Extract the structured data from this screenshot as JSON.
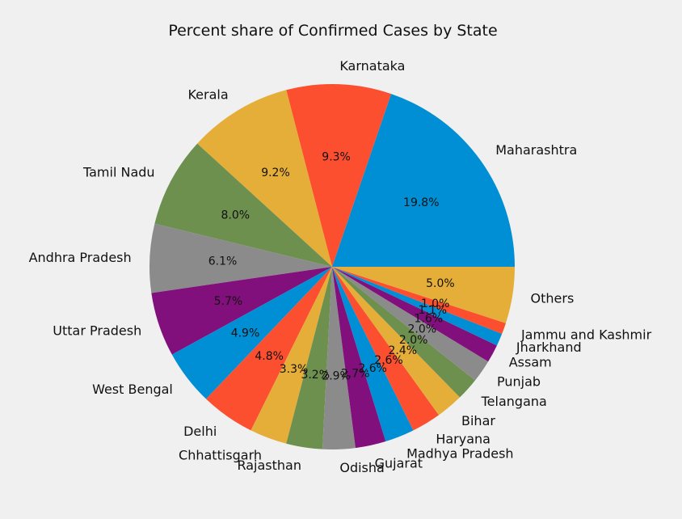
{
  "chart_data": {
    "type": "pie",
    "title": "Percent share of Confirmed Cases by State",
    "start_angle_deg": 0,
    "direction": "counterclockwise",
    "slices": [
      {
        "label": "Maharashtra",
        "value": 19.8,
        "pct_text": "19.8%",
        "color": "#008fd5"
      },
      {
        "label": "Karnataka",
        "value": 9.3,
        "pct_text": "9.3%",
        "color": "#fc4f30"
      },
      {
        "label": "Kerala",
        "value": 9.2,
        "pct_text": "9.2%",
        "color": "#e5ae38"
      },
      {
        "label": "Tamil Nadu",
        "value": 8.0,
        "pct_text": "8.0%",
        "color": "#6d904f"
      },
      {
        "label": "Andhra Pradesh",
        "value": 6.1,
        "pct_text": "6.1%",
        "color": "#8b8b8b"
      },
      {
        "label": "Uttar Pradesh",
        "value": 5.7,
        "pct_text": "5.7%",
        "color": "#810f7c"
      },
      {
        "label": "West Bengal",
        "value": 4.9,
        "pct_text": "4.9%",
        "color": "#008fd5"
      },
      {
        "label": "Delhi",
        "value": 4.8,
        "pct_text": "4.8%",
        "color": "#fc4f30"
      },
      {
        "label": "Chhattisgarh",
        "value": 3.3,
        "pct_text": "3.3%",
        "color": "#e5ae38"
      },
      {
        "label": "Rajasthan",
        "value": 3.2,
        "pct_text": "3.2%",
        "color": "#6d904f"
      },
      {
        "label": "Odisha",
        "value": 2.9,
        "pct_text": "2.9%",
        "color": "#8b8b8b"
      },
      {
        "label": "Gujarat",
        "value": 2.7,
        "pct_text": "2.7%",
        "color": "#810f7c"
      },
      {
        "label": "Madhya Pradesh",
        "value": 2.6,
        "pct_text": "2.6%",
        "color": "#008fd5"
      },
      {
        "label": "Haryana",
        "value": 2.6,
        "pct_text": "2.6%",
        "color": "#fc4f30"
      },
      {
        "label": "Bihar",
        "value": 2.4,
        "pct_text": "2.4%",
        "color": "#e5ae38"
      },
      {
        "label": "Telangana",
        "value": 2.0,
        "pct_text": "2.0%",
        "color": "#6d904f"
      },
      {
        "label": "Punjab",
        "value": 2.0,
        "pct_text": "2.0%",
        "color": "#8b8b8b"
      },
      {
        "label": "Assam",
        "value": 1.6,
        "pct_text": "1.6%",
        "color": "#810f7c"
      },
      {
        "label": "Jharkhand",
        "value": 1.1,
        "pct_text": "1.1%",
        "color": "#008fd5"
      },
      {
        "label": "Jammu and Kashmir",
        "value": 1.0,
        "pct_text": "1.0%",
        "color": "#fc4f30"
      },
      {
        "label": "Others",
        "value": 5.0,
        "pct_text": "5.0%",
        "color": "#e5ae38"
      }
    ]
  }
}
